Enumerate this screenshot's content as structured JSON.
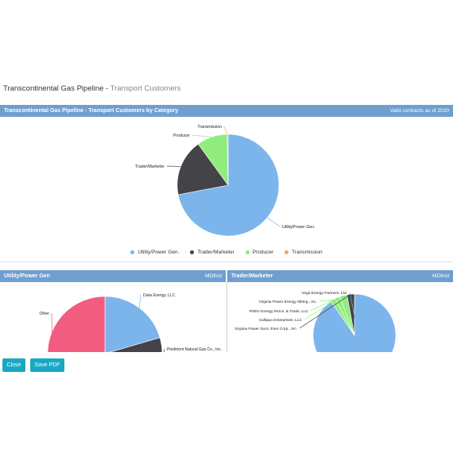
{
  "page": {
    "title_main": "Transcontinental Gas Pipeline - ",
    "title_sub": "Transport Customers"
  },
  "top_panel": {
    "title": "Transcontinental Gas Pipeline - Transport Customers by Category",
    "note": "Valid contracts as of 2020"
  },
  "left_panel": {
    "title": "Utility/Power Gen",
    "units": "MDth/d"
  },
  "right_panel": {
    "title": "Trader/Marketer",
    "units": "MDth/d"
  },
  "buttons": {
    "close": "Close",
    "save_pdf": "Save PDF"
  },
  "colors": {
    "utility": "#7cb5ec",
    "trader": "#434348",
    "producer": "#90ed7d",
    "transmission": "#f7a35c",
    "other": "#f15c80",
    "header": "#6f9fcf",
    "button": "#17a9c4"
  },
  "chart_data": [
    {
      "type": "pie",
      "title": "Transcontinental Gas Pipeline - Transport Customers by Category",
      "legend_position": "bottom",
      "categories": [
        "Utility/Power Gen.",
        "Trader/Marketer",
        "Producer",
        "Transmission"
      ],
      "values": [
        72,
        18,
        9.7,
        0.3
      ]
    },
    {
      "type": "pie",
      "title": "Utility/Power Gen",
      "categories": [
        "Duke Energy, LLC",
        "Piedmont Natural Gas Co., Inc.",
        "Other"
      ],
      "values": [
        16,
        12,
        50
      ]
    },
    {
      "type": "pie",
      "title": "Trader/Marketer",
      "categories": [
        "Vega Energy Partners, Ltd.",
        "Virginia Power Energy Mktng., Inc.",
        "PSEG Energy Rsrcs. & Trade, LLC",
        "Calliquo Enterprises, LLC",
        "Virginia Power Svcs. Ener Corp., Inc."
      ],
      "values": [
        47,
        1,
        1,
        1.5,
        1.5
      ]
    }
  ]
}
